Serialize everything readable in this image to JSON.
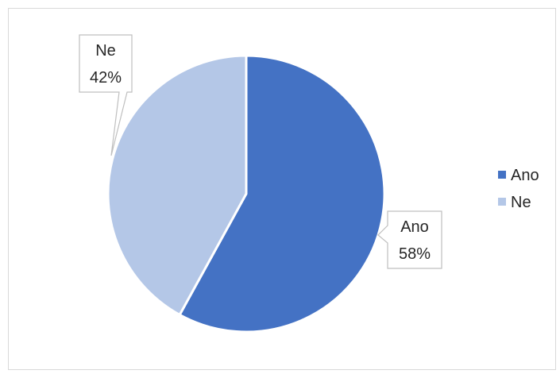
{
  "chart_data": {
    "type": "pie",
    "title": "",
    "categories": [
      "Ano",
      "Ne"
    ],
    "values": [
      58,
      42
    ],
    "colors": [
      "#4472c4",
      "#b4c7e7"
    ],
    "data_labels": [
      {
        "category": "Ano",
        "percent": "58%"
      },
      {
        "category": "Ne",
        "percent": "42%"
      }
    ],
    "legend": {
      "position": "right",
      "entries": [
        "Ano",
        "Ne"
      ]
    },
    "start_angle_deg": 0,
    "direction": "clockwise",
    "border_color": "#d9d9d9",
    "text_color": "#262626"
  }
}
